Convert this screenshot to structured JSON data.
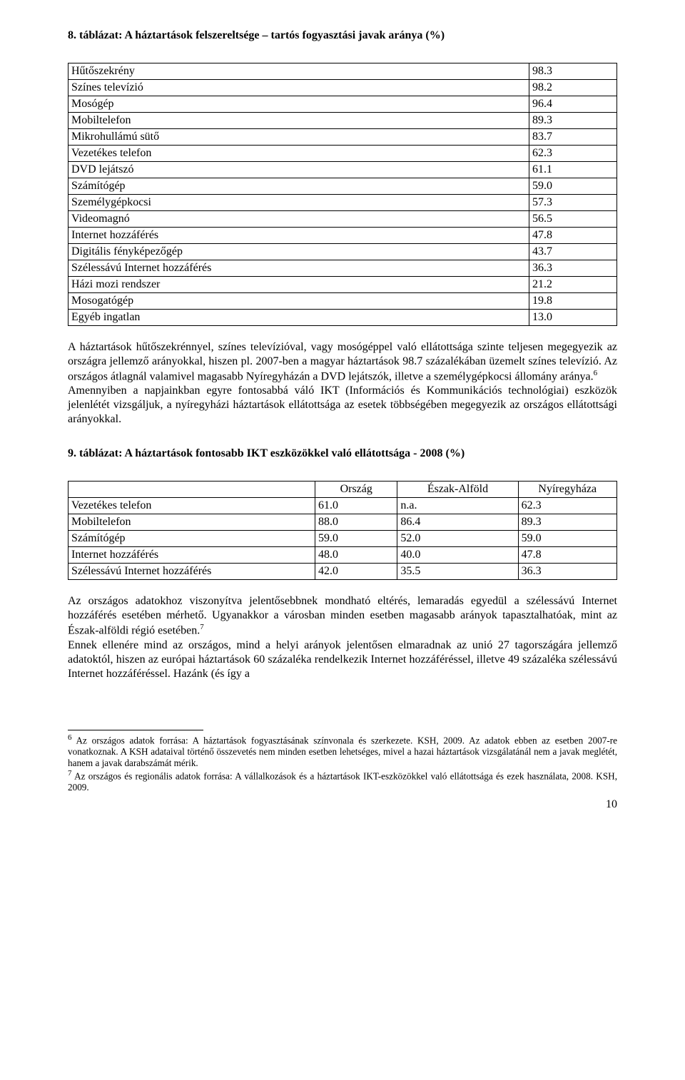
{
  "heading1": "8. táblázat: A háztartások felszereltsége – tartós fogyasztási javak aránya (%)",
  "table1": {
    "rows": [
      {
        "label": "Hűtőszekrény",
        "value": "98.3"
      },
      {
        "label": "Színes televízió",
        "value": "98.2"
      },
      {
        "label": "Mosógép",
        "value": "96.4"
      },
      {
        "label": "Mobiltelefon",
        "value": "89.3"
      },
      {
        "label": "Mikrohullámú sütő",
        "value": "83.7"
      },
      {
        "label": "Vezetékes telefon",
        "value": "62.3"
      },
      {
        "label": "DVD lejátszó",
        "value": "61.1"
      },
      {
        "label": "Számítógép",
        "value": "59.0"
      },
      {
        "label": "Személygépkocsi",
        "value": "57.3"
      },
      {
        "label": "Videomagnó",
        "value": "56.5"
      },
      {
        "label": "Internet hozzáférés",
        "value": "47.8"
      },
      {
        "label": "Digitális fényképezőgép",
        "value": "43.7"
      },
      {
        "label": "Szélessávú Internet hozzáférés",
        "value": "36.3"
      },
      {
        "label": "Házi mozi rendszer",
        "value": "21.2"
      },
      {
        "label": "Mosogatógép",
        "value": "19.8"
      },
      {
        "label": "Egyéb ingatlan",
        "value": "13.0"
      }
    ],
    "col_widths": [
      "84%",
      "16%"
    ]
  },
  "para1_a": "A háztartások hűtőszekrénnyel, színes televízióval, vagy mosógéppel való ellátottsága szinte teljesen megegyezik az országra jellemző arányokkal, hiszen pl. 2007-ben a magyar háztartások 98.7 százalékában üzemelt színes televízió. Az országos átlagnál valamivel magasabb Nyíregyházán a DVD lejátszók, illetve a személygépkocsi állomány aránya.",
  "para1_sup": "6",
  "para1_b": "Amennyiben a napjainkban egyre fontosabbá váló IKT (Információs és Kommunikációs technológiai) eszközök jelenlétét vizsgáljuk, a nyíregyházi háztartások ellátottsága az esetek többségében megegyezik az országos ellátottsági arányokkal.",
  "heading2": "9. táblázat: A háztartások fontosabb IKT eszközökkel való ellátottsága - 2008 (%)",
  "table2": {
    "headers": [
      "",
      "Ország",
      "Észak-Alföld",
      "Nyíregyháza"
    ],
    "rows": [
      {
        "label": "Vezetékes telefon",
        "c1": "61.0",
        "c2": "n.a.",
        "c3": "62.3"
      },
      {
        "label": "Mobiltelefon",
        "c1": "88.0",
        "c2": "86.4",
        "c3": "89.3"
      },
      {
        "label": "Számítógép",
        "c1": "59.0",
        "c2": "52.0",
        "c3": "59.0"
      },
      {
        "label": "Internet hozzáférés",
        "c1": "48.0",
        "c2": "40.0",
        "c3": "47.8"
      },
      {
        "label": "Szélessávú Internet hozzáférés",
        "c1": "42.0",
        "c2": "35.5",
        "c3": "36.3"
      }
    ],
    "col_widths": [
      "45%",
      "15%",
      "22%",
      "18%"
    ]
  },
  "para2_a": "Az országos adatokhoz viszonyítva jelentősebbnek mondható eltérés, lemaradás egyedül a szélessávú Internet hozzáférés esetében mérhető. Ugyanakkor a városban minden esetben magasabb arányok tapasztalhatóak, mint az Észak-alföldi régió esetében.",
  "para2_sup": "7",
  "para2_b": "Ennek ellenére mind az országos, mind a helyi arányok jelentősen elmaradnak az unió 27 tagországára jellemző adatoktól, hiszen az európai háztartások 60 százaléka rendelkezik Internet hozzáféréssel, illetve 49 százaléka szélessávú Internet hozzáféréssel. Hazánk (és így a",
  "footnote6_sup": "6",
  "footnote6": " Az országos adatok forrása: A háztartások fogyasztásának színvonala és szerkezete. KSH, 2009. Az adatok ebben az esetben 2007-re vonatkoznak. A KSH adataival történő összevetés nem minden esetben lehetséges, mivel a hazai háztartások vizsgálatánál nem a javak meglétét, hanem a javak darabszámát mérik.",
  "footnote7_sup": "7",
  "footnote7": " Az országos és regionális adatok forrása: A vállalkozások és a háztartások IKT-eszközökkel való ellátottsága és ezek használata, 2008. KSH, 2009.",
  "page_number": "10"
}
